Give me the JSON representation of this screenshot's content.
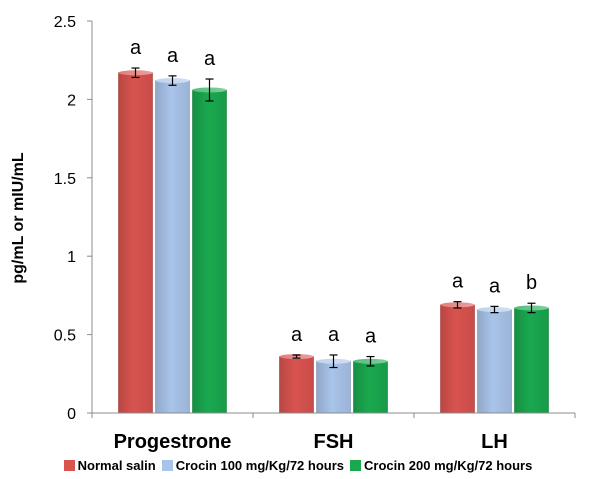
{
  "chart_data": {
    "type": "bar",
    "title": "",
    "xlabel": "",
    "ylabel": "pg/mL or mIU/mL",
    "ylim": [
      0,
      2.5
    ],
    "yticks": [
      "0",
      "0.5",
      "1",
      "1.5",
      "2",
      "2.5"
    ],
    "categories": [
      "Progestrone",
      "FSH",
      "LH"
    ],
    "grid": false,
    "legend": "bottom",
    "series": [
      {
        "name": "Normal salin",
        "color": "#d9534f",
        "values": [
          2.17,
          0.36,
          0.69
        ],
        "errors": [
          0.03,
          0.01,
          0.02
        ],
        "labels": [
          "a",
          "a",
          "a"
        ]
      },
      {
        "name": "Crocin 100 mg/Kg/72 hours",
        "color": "#a9c4ea",
        "values": [
          2.12,
          0.33,
          0.66
        ],
        "errors": [
          0.03,
          0.04,
          0.02
        ],
        "labels": [
          "a",
          "a",
          "a"
        ]
      },
      {
        "name": "Crocin 200 mg/Kg/72 hours",
        "color": "#1aa84f",
        "values": [
          2.06,
          0.33,
          0.67
        ],
        "errors": [
          0.07,
          0.03,
          0.03
        ],
        "labels": [
          "a",
          "a",
          "b"
        ]
      }
    ]
  }
}
